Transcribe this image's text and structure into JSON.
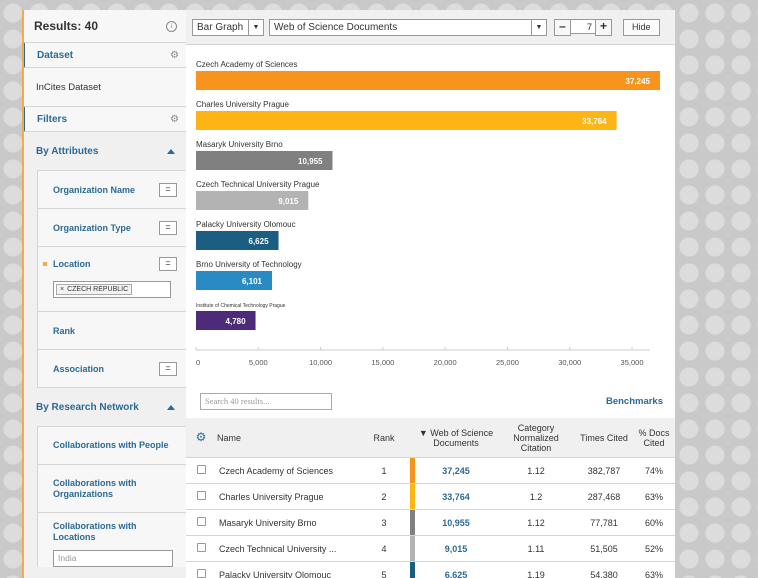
{
  "sidebar": {
    "results_label": "Results: 40",
    "dataset_label": "Dataset",
    "dataset_value": "InCites Dataset",
    "filters_label": "Filters",
    "by_attributes_label": "By Attributes",
    "attributes": [
      {
        "label": "Organization Name"
      },
      {
        "label": "Organization Type"
      },
      {
        "label": "Location"
      },
      {
        "label": "Rank"
      },
      {
        "label": "Association"
      }
    ],
    "eq_symbol": "=",
    "location_tag": "CZECH REPUBLIC",
    "tag_close": "×",
    "by_research_network_label": "By Research Network",
    "network_items": [
      {
        "label": "Collaborations with People"
      },
      {
        "label": "Collaborations with Organizations"
      },
      {
        "label": "Collaborations with Locations"
      }
    ],
    "locations_placeholder": "India"
  },
  "toolbar": {
    "chart_type": "Bar Graph",
    "metric": "Web of Science Documents",
    "minus": "–",
    "stepper_value": "7",
    "plus": "+",
    "hide_label": "Hide"
  },
  "chart_data": {
    "type": "bar",
    "orientation": "horizontal",
    "categories": [
      "Czech Academy of Sciences",
      "Charles University Prague",
      "Masaryk University Brno",
      "Czech Technical University Prague",
      "Palacky University Olomouc",
      "Brno University of Technology",
      "Institute of Chemical Technology Prague"
    ],
    "values": [
      37245,
      33764,
      10955,
      9015,
      6625,
      6101,
      4780
    ],
    "value_labels": [
      "37,245",
      "33,764",
      "10,955",
      "9,015",
      "6,625",
      "6,101",
      "4,780"
    ],
    "colors": [
      "#f7941d",
      "#fdb515",
      "#808080",
      "#b3b3b3",
      "#1b5e82",
      "#2a8ac4",
      "#4e2a7a"
    ],
    "xlim": [
      0,
      37245
    ],
    "x_ticks": [
      0,
      5000,
      10000,
      15000,
      20000,
      25000,
      30000,
      35000
    ],
    "x_tick_labels": [
      "0",
      "5,000",
      "10,000",
      "15,000",
      "20,000",
      "25,000",
      "30,000",
      "35,000"
    ],
    "grid": false
  },
  "search": {
    "placeholder": "Search 40 results..."
  },
  "benchmarks_label": "Benchmarks",
  "table": {
    "headers": {
      "name": "Name",
      "rank": "Rank",
      "wos_docs": "▼ Web of Science Documents",
      "cnci": "Category Normalized Citation",
      "times_cited": "Times Cited",
      "pct_docs_cited": "% Docs Cited"
    },
    "rows": [
      {
        "name": "Czech Academy of Sciences",
        "rank": "1",
        "docs": "37,245",
        "cnci": "1.12",
        "cited": "382,787",
        "pct": "74%",
        "color": "#f7941d"
      },
      {
        "name": "Charles University Prague",
        "rank": "2",
        "docs": "33,764",
        "cnci": "1.2",
        "cited": "287,468",
        "pct": "63%",
        "color": "#fdb515"
      },
      {
        "name": "Masaryk University Brno",
        "rank": "3",
        "docs": "10,955",
        "cnci": "1.12",
        "cited": "77,781",
        "pct": "60%",
        "color": "#808080"
      },
      {
        "name": "Czech Technical University ...",
        "rank": "4",
        "docs": "9,015",
        "cnci": "1.11",
        "cited": "51,505",
        "pct": "52%",
        "color": "#b3b3b3"
      },
      {
        "name": "Palacky University Olomouc",
        "rank": "5",
        "docs": "6,625",
        "cnci": "1.19",
        "cited": "54,380",
        "pct": "63%",
        "color": "#1b5e82"
      }
    ]
  }
}
